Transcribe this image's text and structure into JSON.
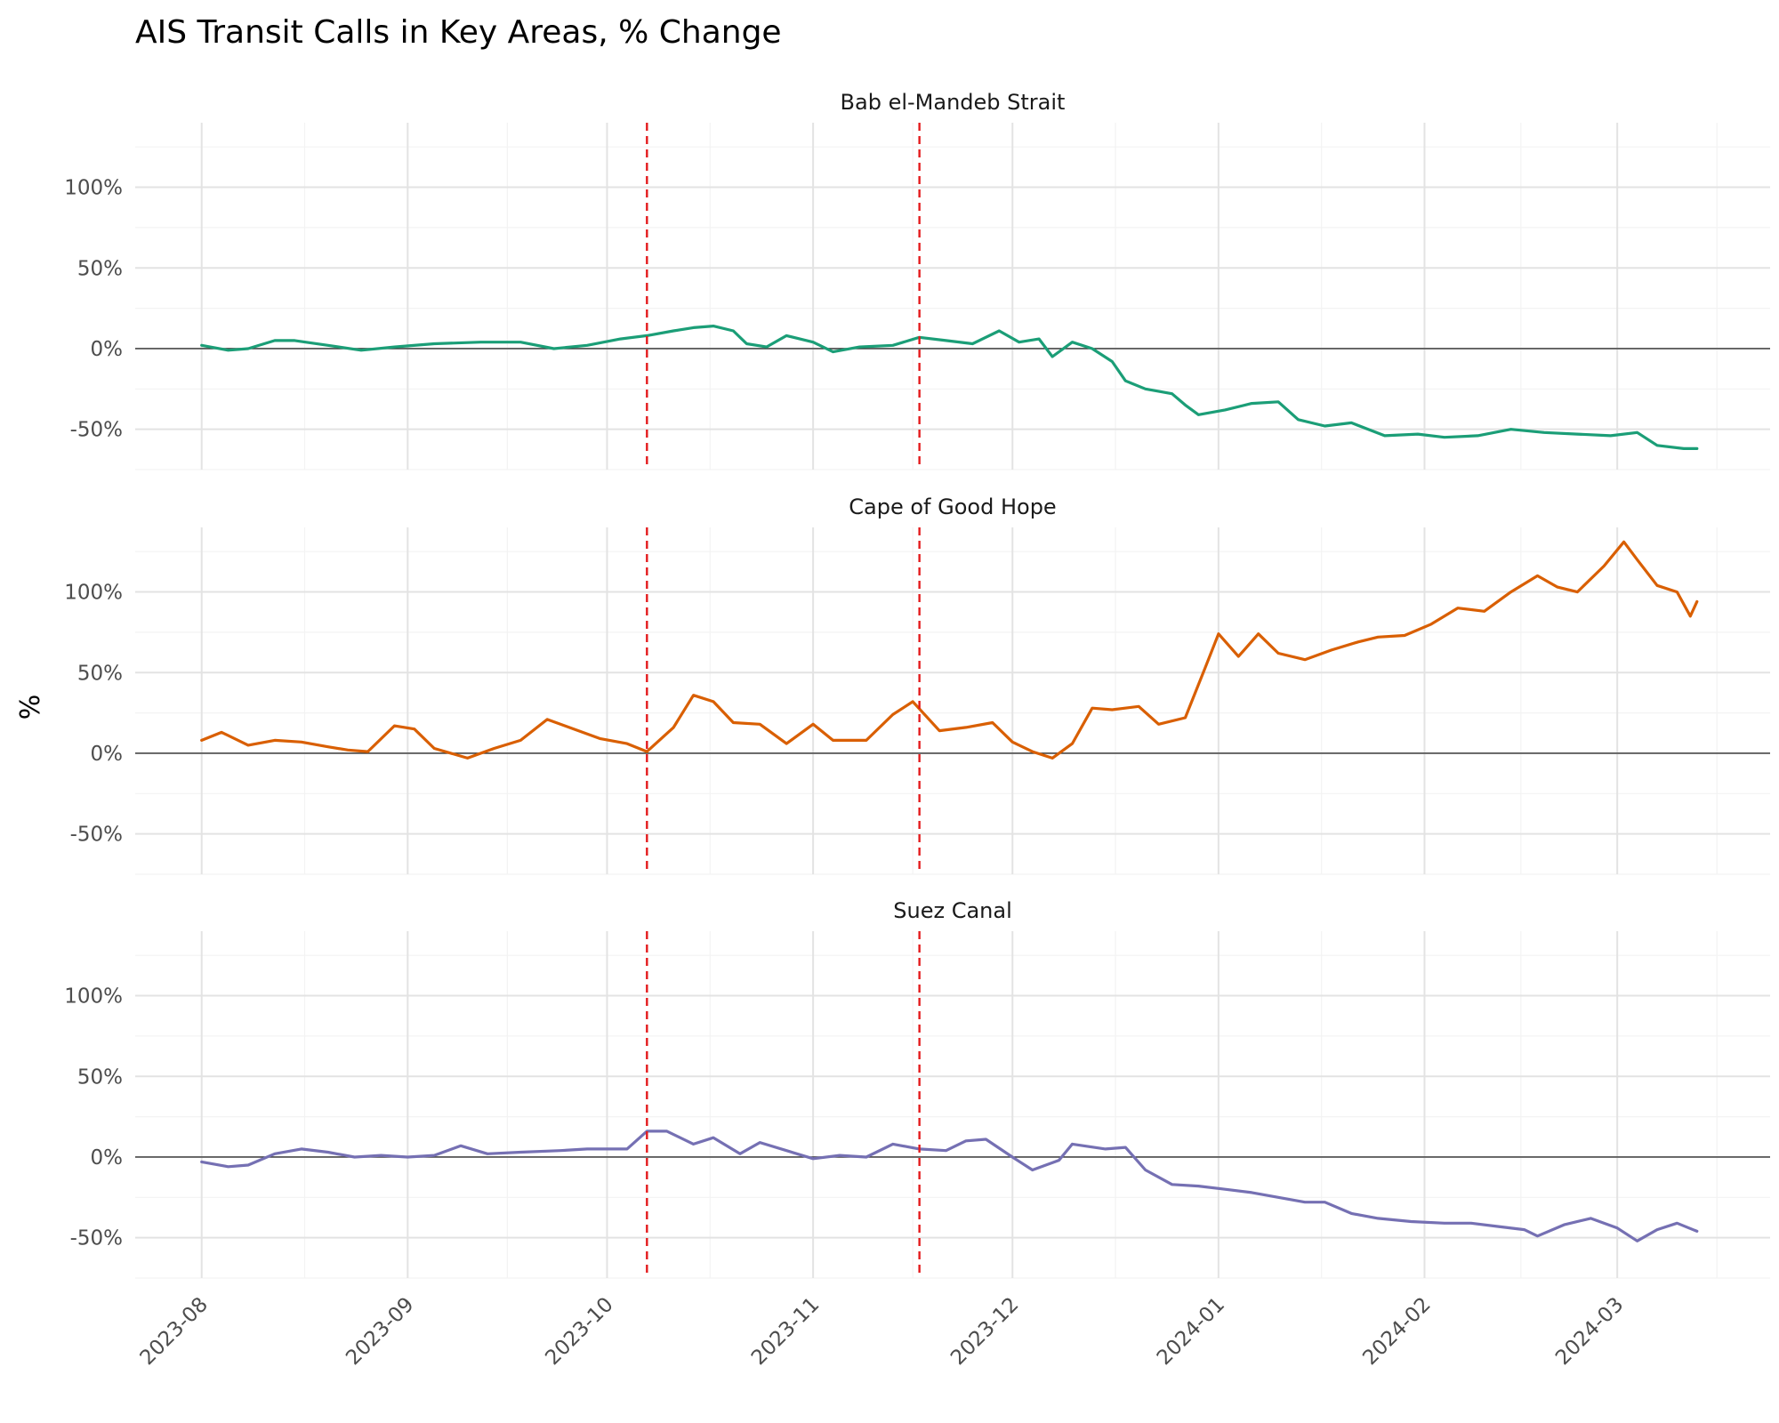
{
  "chart_data": {
    "type": "line",
    "title": "AIS Transit Calls in Key Areas, % Change",
    "ylabel": "%",
    "xlabel": "",
    "ylim": [
      -75,
      140
    ],
    "yticks": [
      -50,
      0,
      50,
      100
    ],
    "ytick_labels": [
      "-50%",
      "0%",
      "50%",
      "100%"
    ],
    "xlim": [
      "2023-07-22",
      "2024-03-24"
    ],
    "xticks": [
      "2023-08-01",
      "2023-09-01",
      "2023-10-01",
      "2023-11-01",
      "2023-12-01",
      "2024-01-01",
      "2024-02-01",
      "2024-03-01"
    ],
    "xtick_labels": [
      "2023-08",
      "2023-09",
      "2023-10",
      "2023-11",
      "2023-12",
      "2024-01",
      "2024-02",
      "2024-03"
    ],
    "reference_lines": [
      "2023-10-07",
      "2023-11-17"
    ],
    "reference_color": "#e31a1c",
    "grid": true,
    "facets": [
      {
        "name": "Bab el-Mandeb Strait",
        "color": "#1b9e77",
        "points": [
          [
            "2023-08-01",
            2
          ],
          [
            "2023-08-05",
            -1
          ],
          [
            "2023-08-08",
            0
          ],
          [
            "2023-08-12",
            5
          ],
          [
            "2023-08-15",
            5
          ],
          [
            "2023-08-20",
            2
          ],
          [
            "2023-08-25",
            -1
          ],
          [
            "2023-08-30",
            1
          ],
          [
            "2023-09-05",
            3
          ],
          [
            "2023-09-12",
            4
          ],
          [
            "2023-09-18",
            4
          ],
          [
            "2023-09-23",
            0
          ],
          [
            "2023-09-28",
            2
          ],
          [
            "2023-10-03",
            6
          ],
          [
            "2023-10-07",
            8
          ],
          [
            "2023-10-11",
            11
          ],
          [
            "2023-10-14",
            13
          ],
          [
            "2023-10-17",
            14
          ],
          [
            "2023-10-20",
            11
          ],
          [
            "2023-10-22",
            3
          ],
          [
            "2023-10-25",
            1
          ],
          [
            "2023-10-28",
            8
          ],
          [
            "2023-11-01",
            4
          ],
          [
            "2023-11-04",
            -2
          ],
          [
            "2023-11-08",
            1
          ],
          [
            "2023-11-13",
            2
          ],
          [
            "2023-11-17",
            7
          ],
          [
            "2023-11-21",
            5
          ],
          [
            "2023-11-25",
            3
          ],
          [
            "2023-11-29",
            11
          ],
          [
            "2023-12-02",
            4
          ],
          [
            "2023-12-05",
            6
          ],
          [
            "2023-12-07",
            -5
          ],
          [
            "2023-12-10",
            4
          ],
          [
            "2023-12-13",
            0
          ],
          [
            "2023-12-16",
            -8
          ],
          [
            "2023-12-18",
            -20
          ],
          [
            "2023-12-21",
            -25
          ],
          [
            "2023-12-25",
            -28
          ],
          [
            "2023-12-27",
            -35
          ],
          [
            "2023-12-29",
            -41
          ],
          [
            "2024-01-02",
            -38
          ],
          [
            "2024-01-06",
            -34
          ],
          [
            "2024-01-10",
            -33
          ],
          [
            "2024-01-13",
            -44
          ],
          [
            "2024-01-17",
            -48
          ],
          [
            "2024-01-21",
            -46
          ],
          [
            "2024-01-26",
            -54
          ],
          [
            "2024-01-31",
            -53
          ],
          [
            "2024-02-04",
            -55
          ],
          [
            "2024-02-09",
            -54
          ],
          [
            "2024-02-14",
            -50
          ],
          [
            "2024-02-19",
            -52
          ],
          [
            "2024-02-24",
            -53
          ],
          [
            "2024-02-29",
            -54
          ],
          [
            "2024-03-04",
            -52
          ],
          [
            "2024-03-07",
            -60
          ],
          [
            "2024-03-11",
            -62
          ],
          [
            "2024-03-13",
            -62
          ]
        ]
      },
      {
        "name": "Cape of Good Hope",
        "color": "#d95f02",
        "points": [
          [
            "2023-08-01",
            8
          ],
          [
            "2023-08-04",
            13
          ],
          [
            "2023-08-08",
            5
          ],
          [
            "2023-08-12",
            8
          ],
          [
            "2023-08-16",
            7
          ],
          [
            "2023-08-20",
            4
          ],
          [
            "2023-08-23",
            2
          ],
          [
            "2023-08-26",
            1
          ],
          [
            "2023-08-30",
            17
          ],
          [
            "2023-09-02",
            15
          ],
          [
            "2023-09-05",
            3
          ],
          [
            "2023-09-10",
            -3
          ],
          [
            "2023-09-14",
            3
          ],
          [
            "2023-09-18",
            8
          ],
          [
            "2023-09-22",
            21
          ],
          [
            "2023-09-26",
            15
          ],
          [
            "2023-09-30",
            9
          ],
          [
            "2023-10-04",
            6
          ],
          [
            "2023-10-07",
            1
          ],
          [
            "2023-10-11",
            16
          ],
          [
            "2023-10-14",
            36
          ],
          [
            "2023-10-17",
            32
          ],
          [
            "2023-10-20",
            19
          ],
          [
            "2023-10-24",
            18
          ],
          [
            "2023-10-28",
            6
          ],
          [
            "2023-11-01",
            18
          ],
          [
            "2023-11-04",
            8
          ],
          [
            "2023-11-09",
            8
          ],
          [
            "2023-11-13",
            24
          ],
          [
            "2023-11-16",
            32
          ],
          [
            "2023-11-20",
            14
          ],
          [
            "2023-11-24",
            16
          ],
          [
            "2023-11-28",
            19
          ],
          [
            "2023-12-01",
            7
          ],
          [
            "2023-12-04",
            1
          ],
          [
            "2023-12-07",
            -3
          ],
          [
            "2023-12-10",
            6
          ],
          [
            "2023-12-13",
            28
          ],
          [
            "2023-12-16",
            27
          ],
          [
            "2023-12-20",
            29
          ],
          [
            "2023-12-23",
            18
          ],
          [
            "2023-12-27",
            22
          ],
          [
            "2023-12-30",
            53
          ],
          [
            "2024-01-01",
            74
          ],
          [
            "2024-01-04",
            60
          ],
          [
            "2024-01-07",
            74
          ],
          [
            "2024-01-10",
            62
          ],
          [
            "2024-01-14",
            58
          ],
          [
            "2024-01-18",
            64
          ],
          [
            "2024-01-22",
            69
          ],
          [
            "2024-01-25",
            72
          ],
          [
            "2024-01-29",
            73
          ],
          [
            "2024-02-02",
            80
          ],
          [
            "2024-02-06",
            90
          ],
          [
            "2024-02-10",
            88
          ],
          [
            "2024-02-14",
            100
          ],
          [
            "2024-02-18",
            110
          ],
          [
            "2024-02-21",
            103
          ],
          [
            "2024-02-24",
            100
          ],
          [
            "2024-02-28",
            116
          ],
          [
            "2024-03-02",
            131
          ],
          [
            "2024-03-04",
            120
          ],
          [
            "2024-03-07",
            104
          ],
          [
            "2024-03-10",
            100
          ],
          [
            "2024-03-12",
            85
          ],
          [
            "2024-03-13",
            94
          ]
        ]
      },
      {
        "name": "Suez Canal",
        "color": "#7570b3",
        "points": [
          [
            "2023-08-01",
            -3
          ],
          [
            "2023-08-05",
            -6
          ],
          [
            "2023-08-08",
            -5
          ],
          [
            "2023-08-12",
            2
          ],
          [
            "2023-08-16",
            5
          ],
          [
            "2023-08-20",
            3
          ],
          [
            "2023-08-24",
            0
          ],
          [
            "2023-08-28",
            1
          ],
          [
            "2023-09-01",
            0
          ],
          [
            "2023-09-05",
            1
          ],
          [
            "2023-09-09",
            7
          ],
          [
            "2023-09-13",
            2
          ],
          [
            "2023-09-18",
            3
          ],
          [
            "2023-09-24",
            4
          ],
          [
            "2023-09-28",
            5
          ],
          [
            "2023-10-04",
            5
          ],
          [
            "2023-10-07",
            16
          ],
          [
            "2023-10-10",
            16
          ],
          [
            "2023-10-14",
            8
          ],
          [
            "2023-10-17",
            12
          ],
          [
            "2023-10-21",
            2
          ],
          [
            "2023-10-24",
            9
          ],
          [
            "2023-10-28",
            4
          ],
          [
            "2023-11-01",
            -1
          ],
          [
            "2023-11-05",
            1
          ],
          [
            "2023-11-09",
            0
          ],
          [
            "2023-11-13",
            8
          ],
          [
            "2023-11-17",
            5
          ],
          [
            "2023-11-21",
            4
          ],
          [
            "2023-11-24",
            10
          ],
          [
            "2023-11-27",
            11
          ],
          [
            "2023-12-01",
            0
          ],
          [
            "2023-12-04",
            -8
          ],
          [
            "2023-12-08",
            -2
          ],
          [
            "2023-12-10",
            8
          ],
          [
            "2023-12-15",
            5
          ],
          [
            "2023-12-18",
            6
          ],
          [
            "2023-12-21",
            -8
          ],
          [
            "2023-12-25",
            -17
          ],
          [
            "2023-12-29",
            -18
          ],
          [
            "2024-01-02",
            -20
          ],
          [
            "2024-01-06",
            -22
          ],
          [
            "2024-01-10",
            -25
          ],
          [
            "2024-01-14",
            -28
          ],
          [
            "2024-01-17",
            -28
          ],
          [
            "2024-01-21",
            -35
          ],
          [
            "2024-01-25",
            -38
          ],
          [
            "2024-01-30",
            -40
          ],
          [
            "2024-02-04",
            -41
          ],
          [
            "2024-02-08",
            -41
          ],
          [
            "2024-02-12",
            -43
          ],
          [
            "2024-02-16",
            -45
          ],
          [
            "2024-02-18",
            -49
          ],
          [
            "2024-02-22",
            -42
          ],
          [
            "2024-02-26",
            -38
          ],
          [
            "2024-03-01",
            -44
          ],
          [
            "2024-03-04",
            -52
          ],
          [
            "2024-03-07",
            -45
          ],
          [
            "2024-03-10",
            -41
          ],
          [
            "2024-03-13",
            -46
          ]
        ]
      }
    ]
  }
}
